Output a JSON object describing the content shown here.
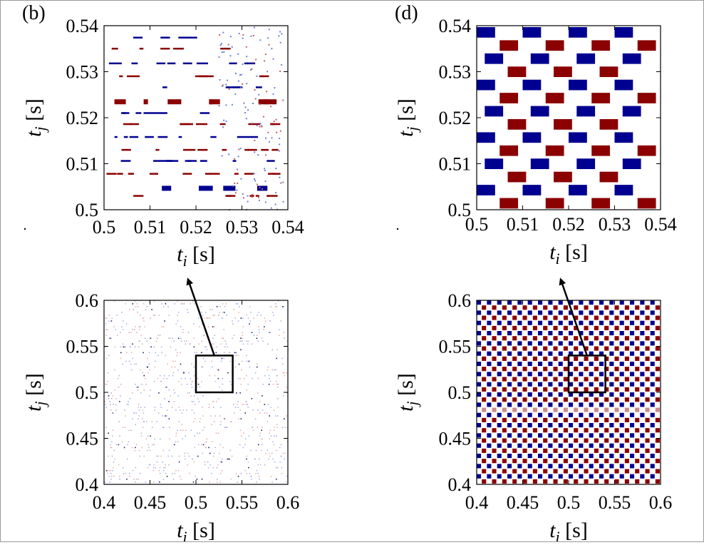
{
  "colors": {
    "positive": "#8b0000",
    "negative": "#000090",
    "background": "#ffffff",
    "axis": "#000000"
  },
  "chart_data": [
    {
      "id": "b",
      "type": "heatmap",
      "panel_label": "(b)",
      "xlabel": {
        "var": "t",
        "sub": "i",
        "unit": "[s]"
      },
      "ylabel": {
        "var": "t",
        "sub": "j",
        "unit": "[s]"
      },
      "xlim": [
        0.5,
        0.54
      ],
      "ylim": [
        0.5,
        0.54
      ],
      "xticks": [
        "0.5",
        "0.51",
        "0.52",
        "0.53",
        "0.54"
      ],
      "yticks": [
        "0.5",
        "0.51",
        "0.52",
        "0.53",
        "0.54"
      ],
      "pattern": "sparse"
    },
    {
      "id": "d",
      "type": "heatmap",
      "panel_label": "(d)",
      "xlabel": {
        "var": "t",
        "sub": "i",
        "unit": "[s]"
      },
      "ylabel": {
        "var": "t",
        "sub": "j",
        "unit": "[s]"
      },
      "xlim": [
        0.5,
        0.54
      ],
      "ylim": [
        0.5,
        0.54
      ],
      "xticks": [
        "0.5",
        "0.51",
        "0.52",
        "0.53",
        "0.54"
      ],
      "yticks": [
        "0.5",
        "0.51",
        "0.52",
        "0.53",
        "0.54"
      ],
      "pattern": "checker"
    },
    {
      "id": "bottom-left",
      "type": "heatmap",
      "panel_label": "",
      "xlabel": {
        "var": "t",
        "sub": "i",
        "unit": "[s]"
      },
      "ylabel": {
        "var": "t",
        "sub": "j",
        "unit": "[s]"
      },
      "xlim": [
        0.4,
        0.6
      ],
      "ylim": [
        0.4,
        0.6
      ],
      "xticks": [
        "0.4",
        "0.45",
        "0.5",
        "0.55",
        "0.6"
      ],
      "yticks": [
        "0.4",
        "0.45",
        "0.5",
        "0.55",
        "0.6"
      ],
      "pattern": "sparse-dense",
      "zoom_box": {
        "x": [
          0.5,
          0.54
        ],
        "y": [
          0.5,
          0.54
        ]
      }
    },
    {
      "id": "bottom-right",
      "type": "heatmap",
      "panel_label": "",
      "xlabel": {
        "var": "t",
        "sub": "i",
        "unit": "[s]"
      },
      "ylabel": {
        "var": "t",
        "sub": "j",
        "unit": "[s]"
      },
      "xlim": [
        0.4,
        0.6
      ],
      "ylim": [
        0.4,
        0.6
      ],
      "xticks": [
        "0.4",
        "0.45",
        "0.5",
        "0.55",
        "0.6"
      ],
      "yticks": [
        "0.4",
        "0.45",
        "0.5",
        "0.55",
        "0.6"
      ],
      "pattern": "checker-dense",
      "zoom_box": {
        "x": [
          0.5,
          0.54
        ],
        "y": [
          0.5,
          0.54
        ]
      }
    }
  ]
}
